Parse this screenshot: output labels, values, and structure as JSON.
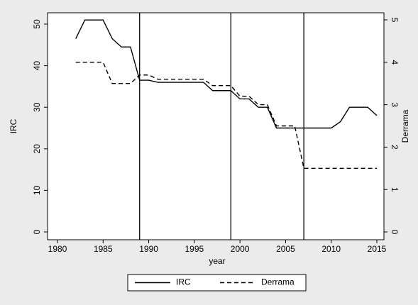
{
  "chart_data": {
    "type": "line",
    "x": [
      1982,
      1983,
      1984,
      1985,
      1986,
      1987,
      1988,
      1989,
      1990,
      1991,
      1992,
      1993,
      1994,
      1995,
      1996,
      1997,
      1998,
      1999,
      2000,
      2001,
      2002,
      2003,
      2004,
      2005,
      2006,
      2007,
      2008,
      2009,
      2010,
      2011,
      2012,
      2013,
      2014,
      2015
    ],
    "series": [
      {
        "name": "IRC",
        "color": "#000000",
        "line_style": "solid",
        "values": [
          46.5,
          51,
          51,
          51,
          46.5,
          44.5,
          44.5,
          36.5,
          36.5,
          36,
          36,
          36,
          36,
          36,
          36,
          34,
          34,
          34,
          32,
          32,
          30,
          30,
          25,
          25,
          25,
          25,
          25,
          25,
          25,
          26.5,
          30,
          30,
          30,
          28
        ]
      },
      {
        "name": "Derrama",
        "color": "#000000",
        "line_style": "dashed",
        "axis": "y2",
        "values": [
          4,
          4,
          4,
          4,
          3.5,
          3.5,
          3.5,
          3.7,
          3.7,
          3.6,
          3.6,
          3.6,
          3.6,
          3.6,
          3.6,
          3.45,
          3.45,
          3.45,
          3.2,
          3.2,
          3,
          3,
          2.5,
          2.5,
          2.5,
          1.5,
          1.5,
          1.5,
          1.5,
          1.5,
          1.5,
          1.5,
          1.5,
          1.5
        ]
      }
    ],
    "xlines": [
      1989,
      1999,
      2007
    ],
    "xlabel": "year",
    "ylabel": "IRC",
    "y2label": "Derrama",
    "xlim": [
      1980,
      2015
    ],
    "xticks": [
      1980,
      1985,
      1990,
      1995,
      2000,
      2005,
      2010,
      2015
    ],
    "ylim": [
      0,
      50
    ],
    "yticks": [
      0,
      10,
      20,
      30,
      40,
      50
    ],
    "y2lim": [
      0,
      5
    ],
    "y2ticks": [
      0,
      1,
      2,
      3,
      4,
      5
    ],
    "legend": "bottom"
  }
}
